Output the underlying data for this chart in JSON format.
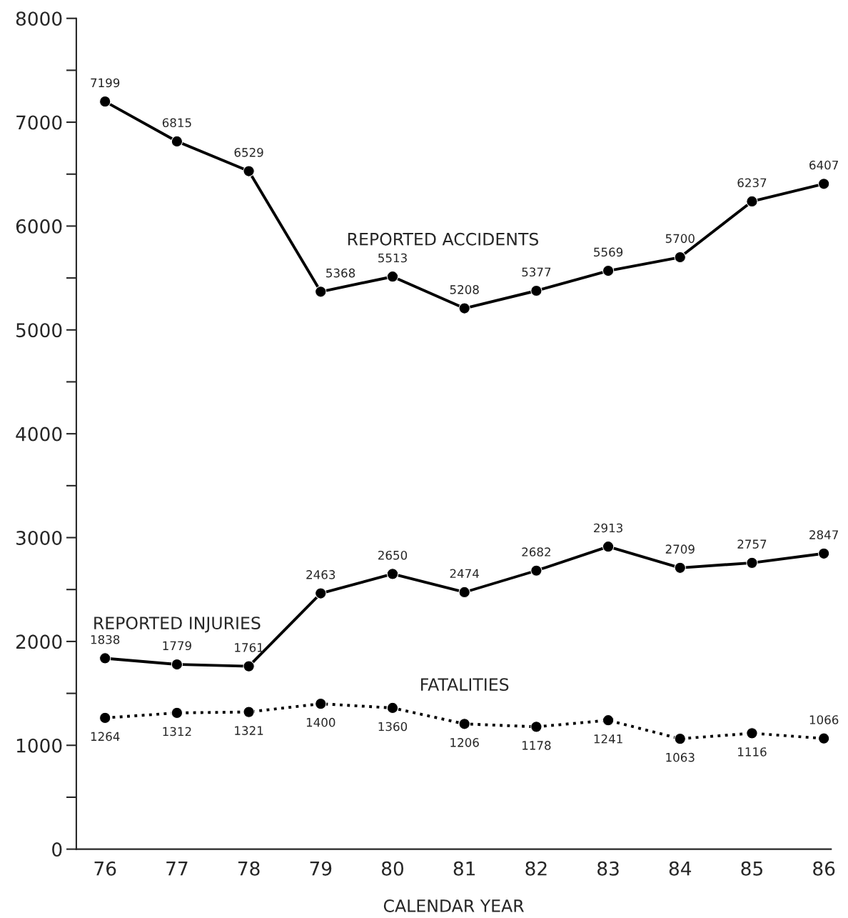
{
  "chart_data": {
    "type": "line",
    "xlabel": "CALENDAR YEAR",
    "categories": [
      "76",
      "77",
      "78",
      "79",
      "80",
      "81",
      "82",
      "83",
      "84",
      "85",
      "86"
    ],
    "series": [
      {
        "name": "REPORTED ACCIDENTS",
        "color": "#000000",
        "line_style": "solid",
        "values": [
          7199,
          6815,
          6529,
          5368,
          5513,
          5208,
          5377,
          5569,
          5700,
          6237,
          6407
        ]
      },
      {
        "name": "REPORTED INJURIES",
        "color": "#000000",
        "line_style": "solid",
        "values": [
          1838,
          1779,
          1761,
          2463,
          2650,
          2474,
          2682,
          2913,
          2709,
          2757,
          2847
        ]
      },
      {
        "name": "FATALITIES",
        "color": "#000000",
        "line_style": "dotted",
        "values": [
          1264,
          1312,
          1321,
          1400,
          1360,
          1206,
          1178,
          1241,
          1063,
          1116,
          1066
        ]
      }
    ],
    "ylim": [
      0,
      8000
    ],
    "yticks": [
      0,
      {
        "value": 500,
        "label": null
      },
      1000,
      {
        "value": 1500,
        "label": null
      },
      2000,
      {
        "value": 2500,
        "label": null
      },
      3000,
      {
        "value": 3500,
        "label": null
      },
      4000,
      {
        "value": 4500,
        "label": null
      },
      5000,
      {
        "value": 5500,
        "label": null
      },
      6000,
      {
        "value": 6500,
        "label": null
      },
      7000,
      {
        "value": 7500,
        "label": null
      },
      8000
    ],
    "marker": "circle",
    "data_labels": true,
    "grid": false,
    "legend": false
  }
}
